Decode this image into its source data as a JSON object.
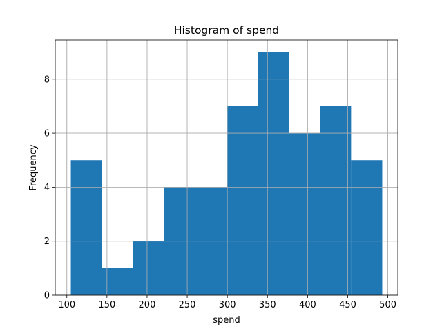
{
  "chart_data": {
    "type": "bar",
    "subtype": "histogram",
    "title": "Histogram of spend",
    "xlabel": "spend",
    "ylabel": "Frequency",
    "bin_edges": [
      105,
      143.8,
      182.6,
      221.4,
      260.2,
      299,
      337.8,
      376.6,
      415.4,
      454.2,
      493
    ],
    "values": [
      5,
      1,
      2,
      4,
      4,
      7,
      9,
      6,
      7,
      5
    ],
    "xlim": [
      85.6,
      512.4
    ],
    "ylim": [
      0,
      9.45
    ],
    "xticks": [
      100,
      150,
      200,
      250,
      300,
      350,
      400,
      450,
      500
    ],
    "yticks": [
      0,
      2,
      4,
      6,
      8
    ],
    "grid": true,
    "legend": "none",
    "colors": {
      "bar": "#1f77b4",
      "grid": "#b0b0b0",
      "axis": "#000000"
    }
  }
}
